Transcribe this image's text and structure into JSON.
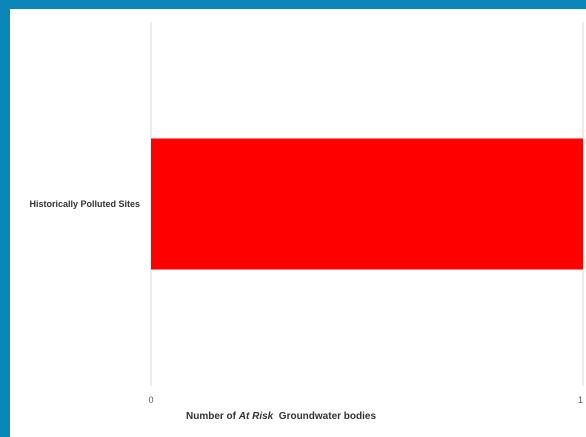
{
  "colors": {
    "frame": "#0a86b8",
    "background": "#ffffff",
    "gridline": "#d9d9d9"
  },
  "chart_data": {
    "type": "bar",
    "orientation": "horizontal",
    "categories": [
      "Historically Polluted Sites"
    ],
    "series": [
      {
        "values": [
          1
        ],
        "color": "#ff0000"
      }
    ],
    "xlim": [
      0,
      1
    ],
    "x_ticks": [
      "0",
      "1"
    ],
    "xlabel_parts": [
      {
        "text": "Number of ",
        "italic": false
      },
      {
        "text": "At Risk",
        "italic": true
      },
      {
        "text": "  Groundwater bodies",
        "italic": false
      }
    ],
    "ylabel": "",
    "title": "",
    "grid": "vertical gridlines",
    "legend": "none"
  }
}
